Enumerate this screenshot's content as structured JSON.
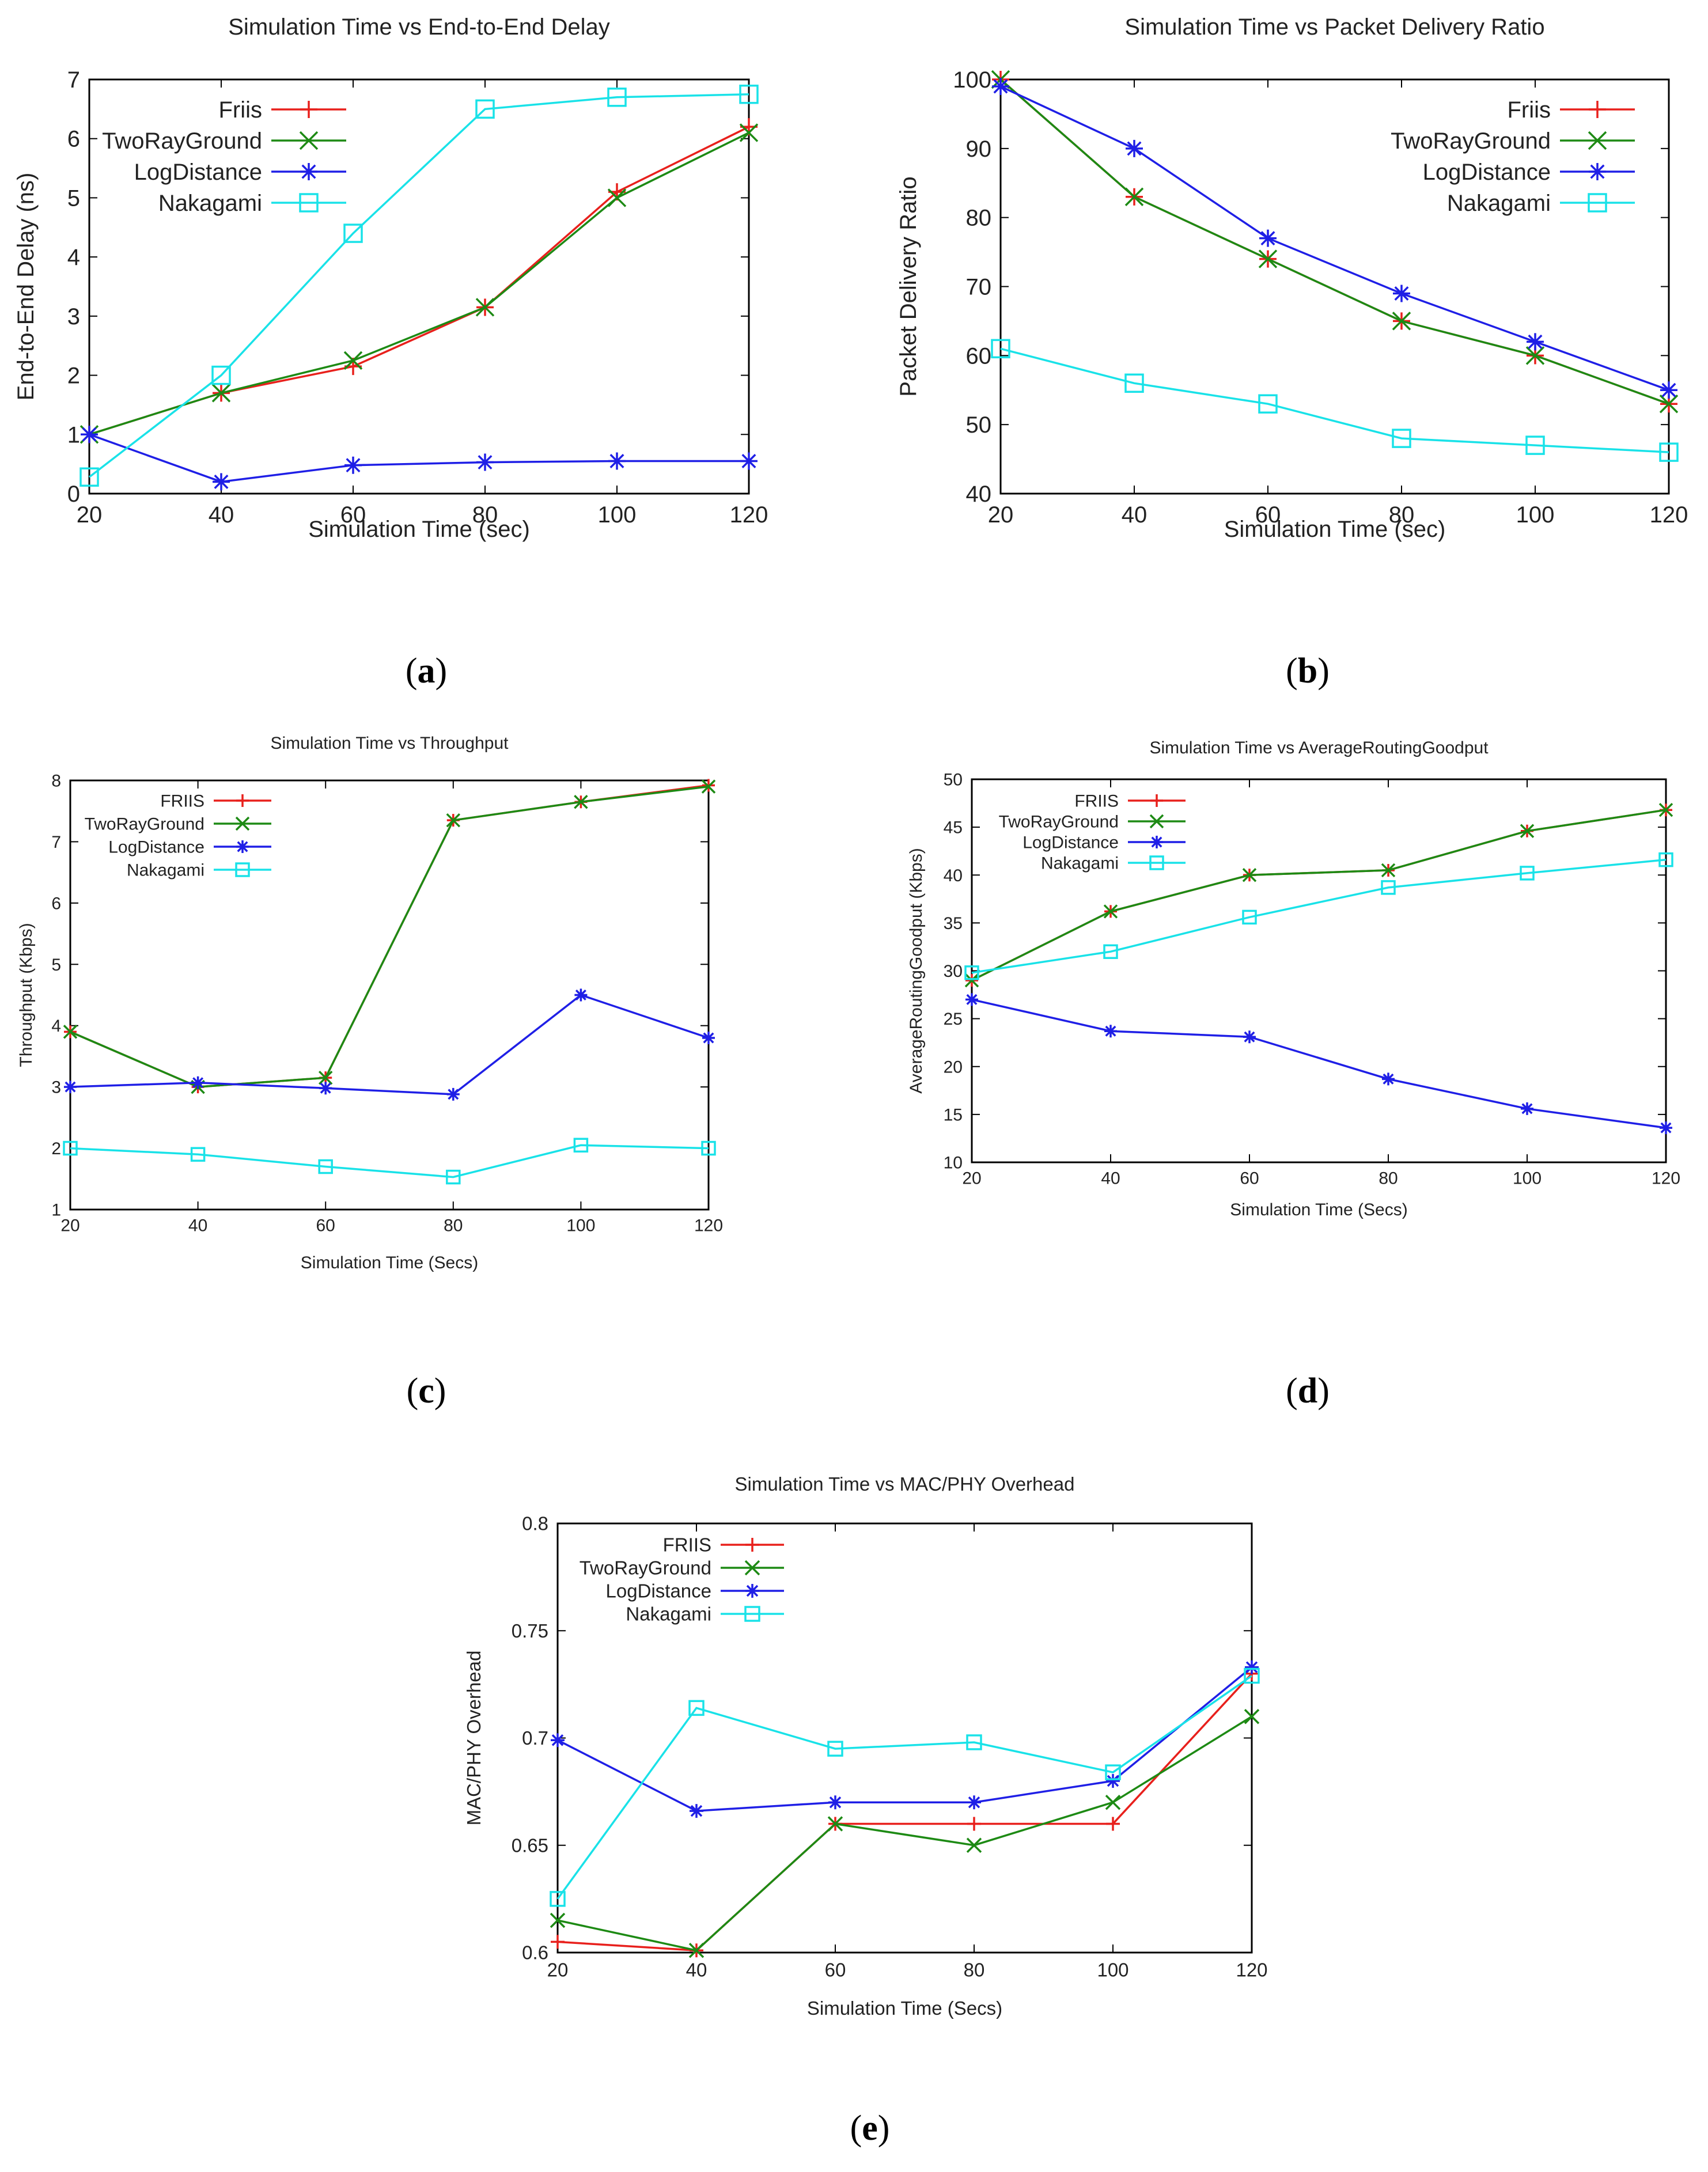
{
  "captions": [
    "a",
    "b",
    "c",
    "d",
    "e"
  ],
  "colors": {
    "friis": "#e8201c",
    "tworay": "#1d8a14",
    "logdist": "#1f1fe6",
    "nakagami": "#19e2e8",
    "frame": "#000000"
  },
  "chart_data": [
    {
      "type": "line",
      "title": "Simulation Time vs End-to-End Delay",
      "xlabel": "Simulation Time (sec)",
      "ylabel": "End-to-End Delay (ns)",
      "x": [
        20,
        40,
        60,
        80,
        100,
        120
      ],
      "xticks": [
        "20",
        "40",
        "60",
        "80",
        "100",
        "120"
      ],
      "yticks": [
        "0",
        "1",
        "2",
        "3",
        "4",
        "5",
        "6",
        "7"
      ],
      "xlim": [
        20,
        120
      ],
      "ylim": [
        0,
        7
      ],
      "grid": false,
      "legend": "top-left",
      "series": [
        {
          "name": "Friis",
          "marker": "plus",
          "color": "#e8201c",
          "values": [
            1.0,
            1.7,
            2.15,
            3.15,
            5.1,
            6.2
          ]
        },
        {
          "name": "TwoRayGround",
          "marker": "x",
          "color": "#1d8a14",
          "values": [
            1.0,
            1.7,
            2.25,
            3.15,
            5.0,
            6.1
          ]
        },
        {
          "name": "LogDistance",
          "marker": "star",
          "color": "#1f1fe6",
          "values": [
            1.0,
            0.2,
            0.48,
            0.53,
            0.55,
            0.55
          ]
        },
        {
          "name": "Nakagami",
          "marker": "square",
          "color": "#19e2e8",
          "values": [
            0.28,
            2.0,
            4.4,
            6.5,
            6.7,
            6.75
          ]
        }
      ]
    },
    {
      "type": "line",
      "title": "Simulation Time vs Packet Delivery Ratio",
      "xlabel": "Simulation Time (sec)",
      "ylabel": "Packet Delivery Ratio",
      "x": [
        20,
        40,
        60,
        80,
        100,
        120
      ],
      "xticks": [
        "20",
        "40",
        "60",
        "80",
        "100",
        "120"
      ],
      "yticks": [
        "40",
        "50",
        "60",
        "70",
        "80",
        "90",
        "100"
      ],
      "xlim": [
        20,
        120
      ],
      "ylim": [
        40,
        100
      ],
      "grid": false,
      "legend": "top-right",
      "series": [
        {
          "name": "Friis",
          "marker": "plus",
          "color": "#e8201c",
          "values": [
            100,
            83,
            74,
            65,
            60,
            53
          ]
        },
        {
          "name": "TwoRayGround",
          "marker": "x",
          "color": "#1d8a14",
          "values": [
            100,
            83,
            74,
            65,
            60,
            53
          ]
        },
        {
          "name": "LogDistance",
          "marker": "star",
          "color": "#1f1fe6",
          "values": [
            99,
            90,
            77,
            69,
            62,
            55
          ]
        },
        {
          "name": "Nakagami",
          "marker": "square",
          "color": "#19e2e8",
          "values": [
            61,
            56,
            53,
            48,
            47,
            46
          ]
        }
      ]
    },
    {
      "type": "line",
      "title": "Simulation Time vs Throughput",
      "xlabel": "Simulation Time (Secs)",
      "ylabel": "Throughput (Kbps)",
      "x": [
        20,
        40,
        60,
        80,
        100,
        120
      ],
      "xticks": [
        "20",
        "40",
        "60",
        "80",
        "100",
        "120"
      ],
      "yticks": [
        "1",
        "2",
        "3",
        "4",
        "5",
        "6",
        "7",
        "8"
      ],
      "xlim": [
        20,
        120
      ],
      "ylim": [
        1,
        8
      ],
      "grid": false,
      "legend": "top-left",
      "series": [
        {
          "name": "FRIIS",
          "marker": "plus",
          "color": "#e8201c",
          "values": [
            3.9,
            3.0,
            3.15,
            7.35,
            7.65,
            7.92
          ]
        },
        {
          "name": "TwoRayGround",
          "marker": "x",
          "color": "#1d8a14",
          "values": [
            3.9,
            3.0,
            3.15,
            7.35,
            7.65,
            7.9
          ]
        },
        {
          "name": "LogDistance",
          "marker": "star",
          "color": "#1f1fe6",
          "values": [
            3.0,
            3.07,
            2.98,
            2.88,
            4.5,
            3.8
          ]
        },
        {
          "name": "Nakagami",
          "marker": "square",
          "color": "#19e2e8",
          "values": [
            2.0,
            1.9,
            1.7,
            1.53,
            2.05,
            2.0
          ]
        }
      ]
    },
    {
      "type": "line",
      "title": "Simulation Time vs AverageRoutingGoodput",
      "xlabel": "Simulation Time (Secs)",
      "ylabel": "AverageRoutingGoodput (Kbps)",
      "x": [
        20,
        40,
        60,
        80,
        100,
        120
      ],
      "xticks": [
        "20",
        "40",
        "60",
        "80",
        "100",
        "120"
      ],
      "yticks": [
        "10",
        "15",
        "20",
        "25",
        "30",
        "35",
        "40",
        "45",
        "50"
      ],
      "xlim": [
        20,
        120
      ],
      "ylim": [
        10,
        50
      ],
      "grid": false,
      "legend": "top-left",
      "series": [
        {
          "name": "FRIIS",
          "marker": "plus",
          "color": "#e8201c",
          "values": [
            29.0,
            36.2,
            40.0,
            40.5,
            44.6,
            46.8
          ]
        },
        {
          "name": "TwoRayGround",
          "marker": "x",
          "color": "#1d8a14",
          "values": [
            29.0,
            36.2,
            40.0,
            40.5,
            44.6,
            46.8
          ]
        },
        {
          "name": "LogDistance",
          "marker": "star",
          "color": "#1f1fe6",
          "values": [
            27.0,
            23.7,
            23.1,
            18.7,
            15.6,
            13.6
          ]
        },
        {
          "name": "Nakagami",
          "marker": "square",
          "color": "#19e2e8",
          "values": [
            29.8,
            32.0,
            35.6,
            38.7,
            40.2,
            41.6
          ]
        }
      ]
    },
    {
      "type": "line",
      "title": "Simulation Time vs MAC/PHY Overhead",
      "xlabel": "Simulation Time (Secs)",
      "ylabel": "MAC/PHY Overhead",
      "x": [
        20,
        40,
        60,
        80,
        100,
        120
      ],
      "xticks": [
        "20",
        "40",
        "60",
        "80",
        "100",
        "120"
      ],
      "yticks": [
        "0.6",
        "0.65",
        "0.7",
        "0.75",
        "0.8"
      ],
      "xlim": [
        20,
        120
      ],
      "ylim": [
        0.6,
        0.8
      ],
      "grid": false,
      "legend": "top-left",
      "series": [
        {
          "name": "FRIIS",
          "marker": "plus",
          "color": "#e8201c",
          "values": [
            0.605,
            0.601,
            0.66,
            0.66,
            0.66,
            0.73
          ]
        },
        {
          "name": "TwoRayGround",
          "marker": "x",
          "color": "#1d8a14",
          "values": [
            0.615,
            0.601,
            0.66,
            0.65,
            0.67,
            0.71
          ]
        },
        {
          "name": "LogDistance",
          "marker": "star",
          "color": "#1f1fe6",
          "values": [
            0.699,
            0.666,
            0.67,
            0.67,
            0.68,
            0.733
          ]
        },
        {
          "name": "Nakagami",
          "marker": "square",
          "color": "#19e2e8",
          "values": [
            0.625,
            0.714,
            0.695,
            0.698,
            0.684,
            0.729
          ]
        }
      ]
    }
  ]
}
